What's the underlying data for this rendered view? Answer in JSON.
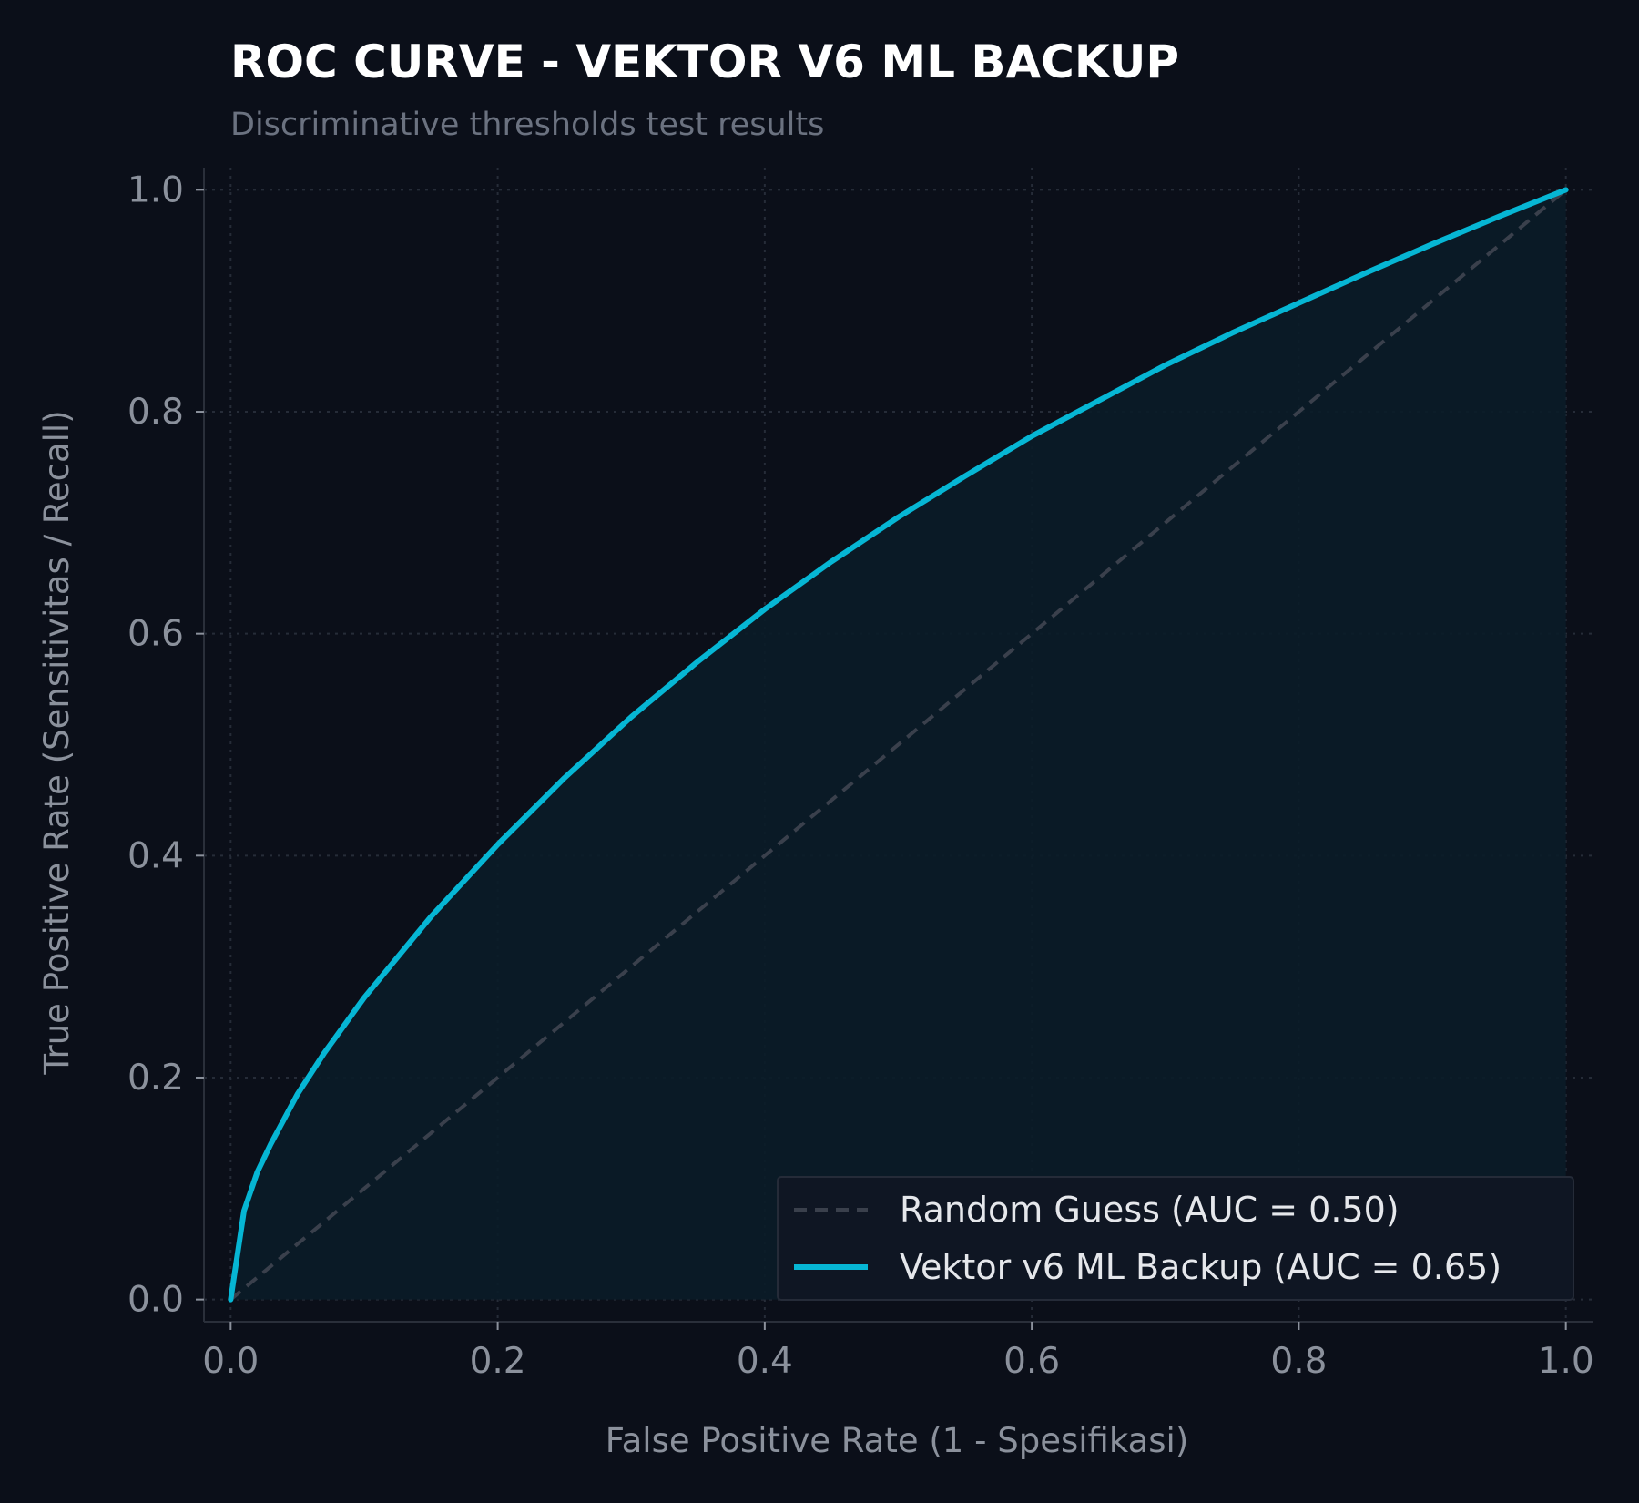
{
  "chart_data": {
    "type": "line",
    "title": "ROC CURVE - VEKTOR V6 ML BACKUP",
    "subtitle": "Discriminative thresholds test results",
    "xlabel": "False Positive Rate (1 - Spesifikasi)",
    "ylabel": "True Positive Rate (Sensitivitas / Recall)",
    "xlim": [
      -0.02,
      1.02
    ],
    "ylim": [
      -0.02,
      1.02
    ],
    "xticks": [
      "0.0",
      "0.2",
      "0.4",
      "0.6",
      "0.8",
      "1.0"
    ],
    "yticks": [
      "0.0",
      "0.2",
      "0.4",
      "0.6",
      "0.8",
      "1.0"
    ],
    "xtick_values": [
      0,
      0.2,
      0.4,
      0.6,
      0.8,
      1.0
    ],
    "ytick_values": [
      0,
      0.2,
      0.4,
      0.6,
      0.8,
      1.0
    ],
    "grid": true,
    "legend_position": "bottom-right",
    "series": [
      {
        "name": "Random Guess (AUC = 0.50)",
        "style": "dashed",
        "color": "#3a404c",
        "x": [
          0,
          1
        ],
        "y": [
          0,
          1
        ]
      },
      {
        "name": "Vektor v6 ML Backup (AUC = 0.65)",
        "style": "solid",
        "color": "#06b6d4",
        "fill": "#0a1c28",
        "x": [
          0,
          0.01,
          0.02,
          0.03,
          0.05,
          0.07,
          0.1,
          0.15,
          0.2,
          0.25,
          0.3,
          0.35,
          0.4,
          0.45,
          0.5,
          0.55,
          0.6,
          0.65,
          0.7,
          0.75,
          0.8,
          0.85,
          0.9,
          0.95,
          1.0
        ],
        "y": [
          0,
          0.08,
          0.115,
          0.14,
          0.185,
          0.222,
          0.272,
          0.345,
          0.41,
          0.47,
          0.525,
          0.575,
          0.622,
          0.665,
          0.705,
          0.742,
          0.778,
          0.81,
          0.842,
          0.871,
          0.898,
          0.925,
          0.951,
          0.976,
          1.0
        ]
      }
    ]
  }
}
